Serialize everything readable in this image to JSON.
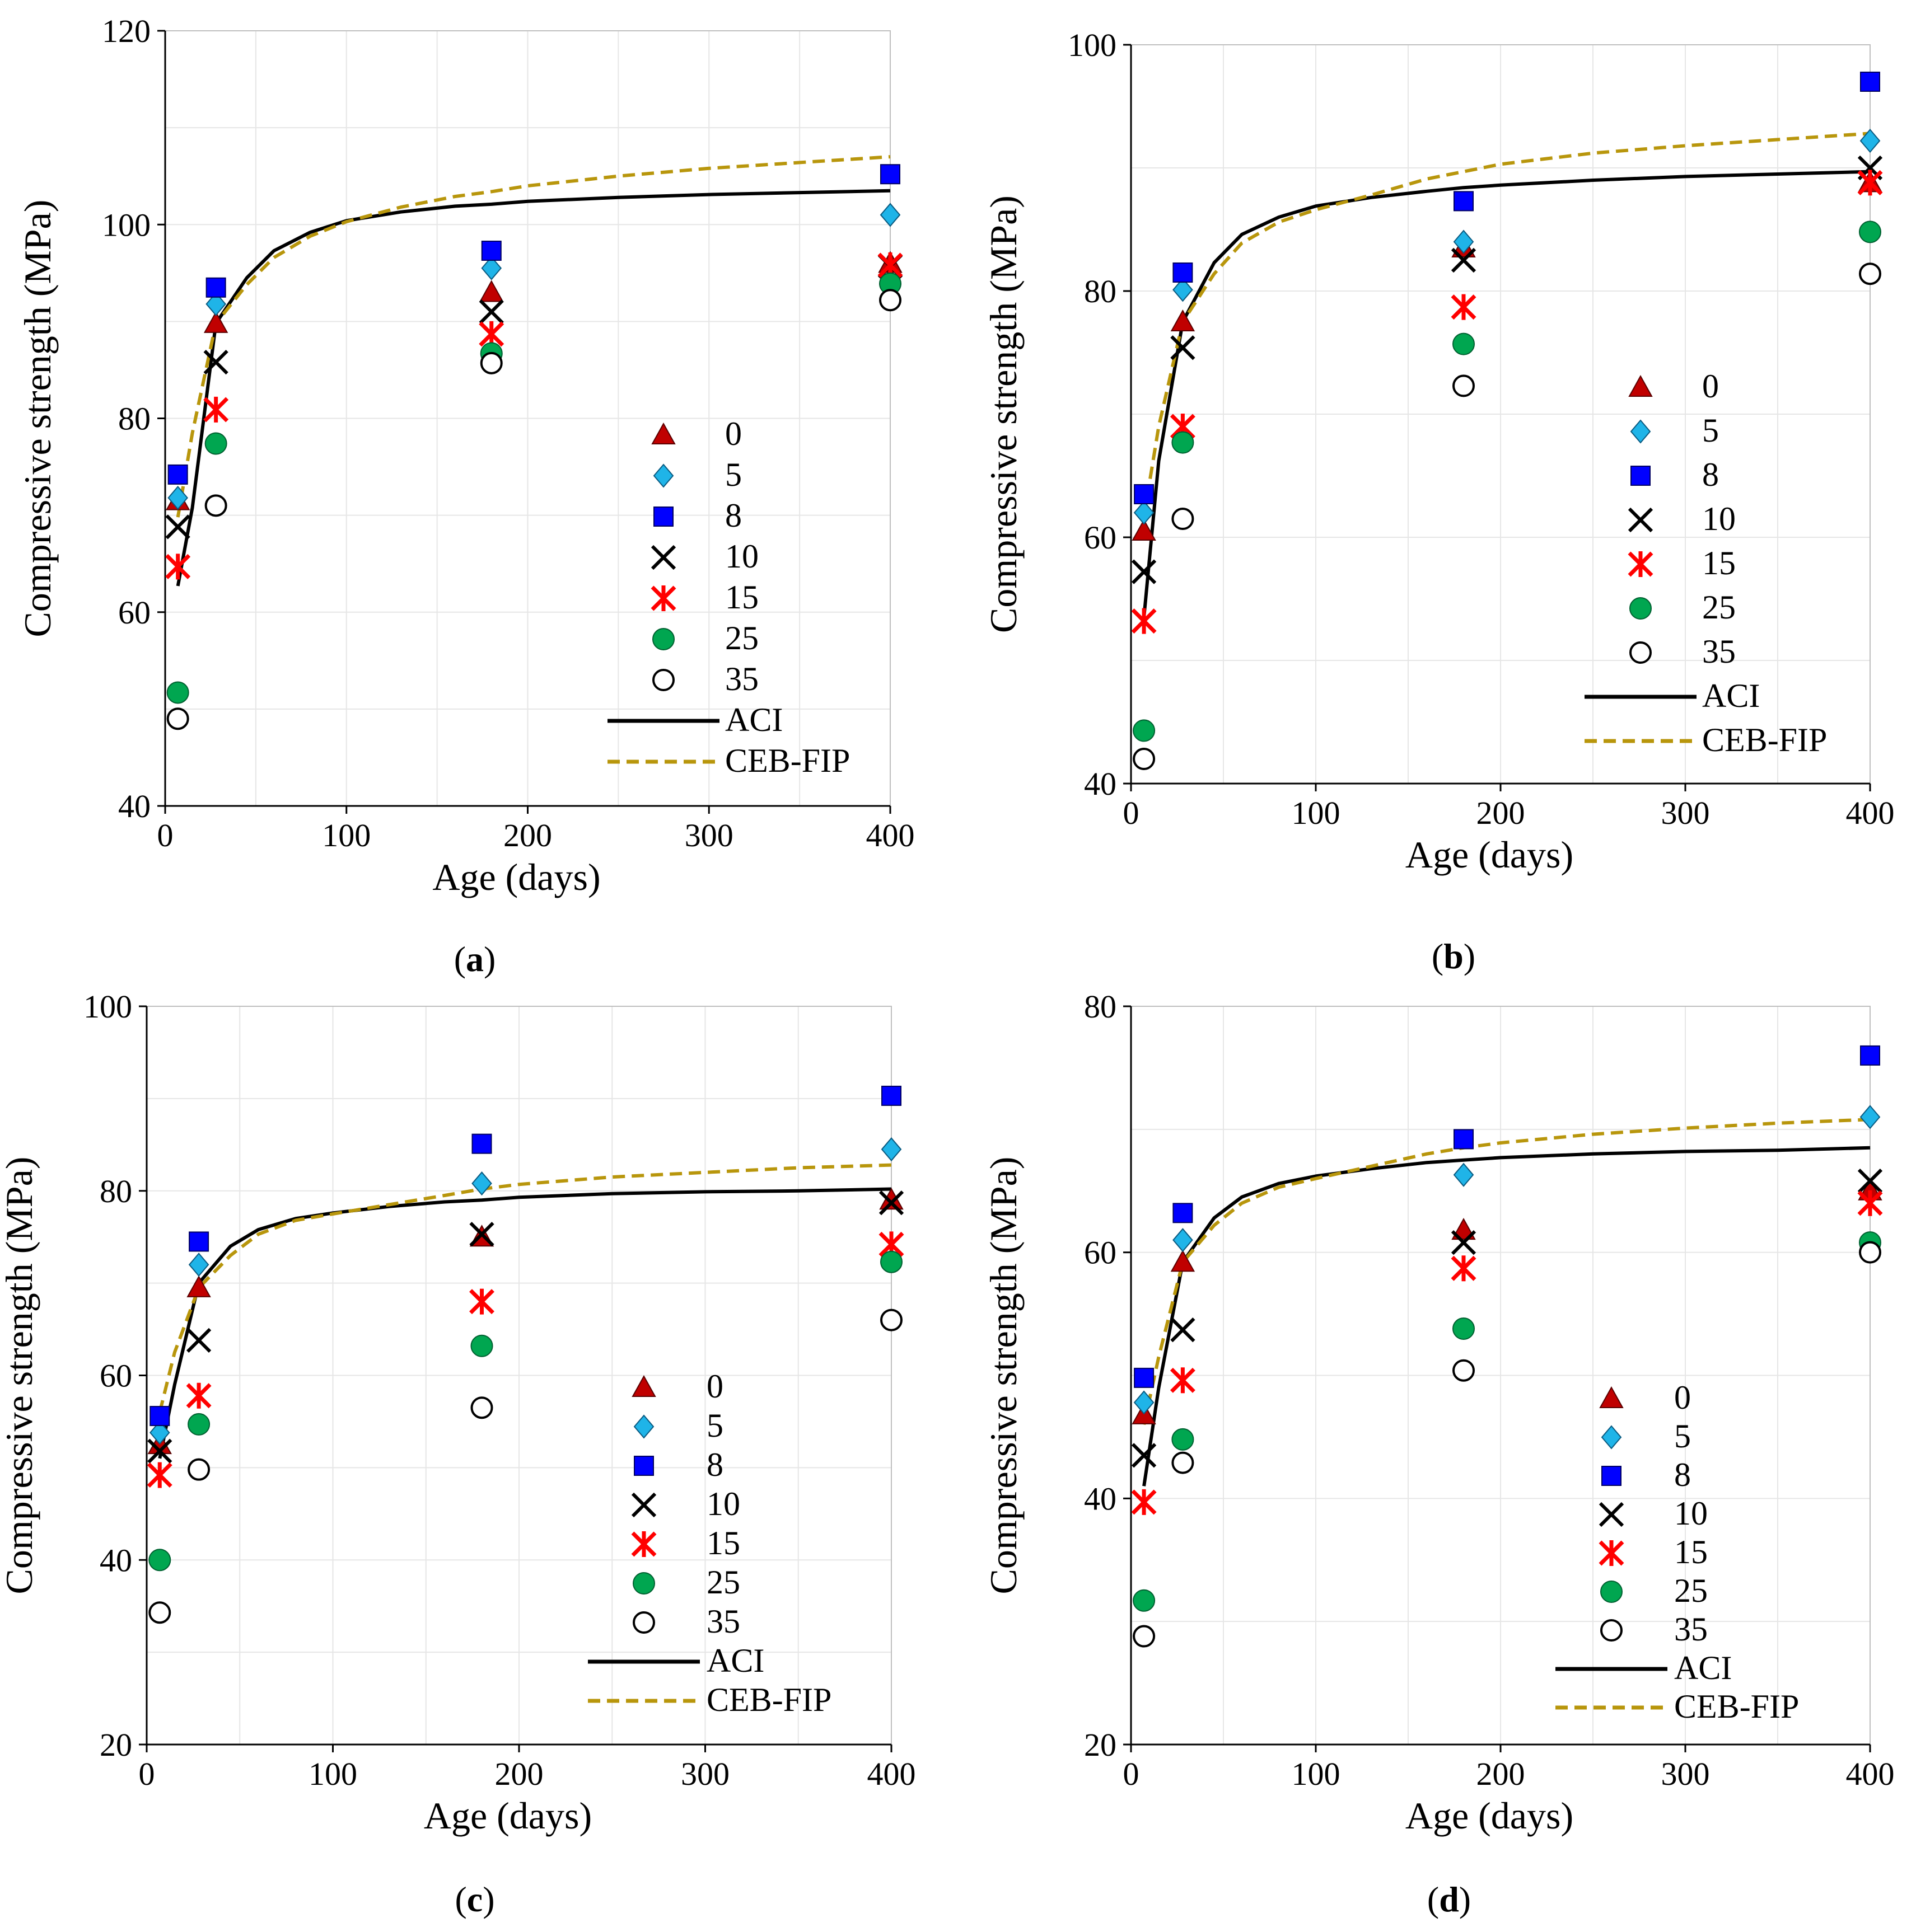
{
  "figure": {
    "series_styles": {
      "0": {
        "color": "#c00000",
        "marker": "triangle-icon"
      },
      "5": {
        "color": "#1fb4e8",
        "marker": "diamond-icon"
      },
      "8": {
        "color": "#0000ff",
        "marker": "square-icon"
      },
      "10": {
        "color": "#000000",
        "marker": "x-cross-icon"
      },
      "15": {
        "color": "#ff0000",
        "marker": "asterisk-icon"
      },
      "25": {
        "color": "#00a650",
        "marker": "filled-circle-icon"
      },
      "35": {
        "color": "#000000",
        "marker": "open-circle-icon"
      },
      "ACI": {
        "color": "#000000",
        "marker": "solid-line"
      },
      "CEB-FIP": {
        "color": "#b8960c",
        "marker": "dashed-line"
      }
    }
  },
  "chart_data": [
    {
      "type": "scatter",
      "panel_label": "a",
      "xlabel": "Age (days)",
      "ylabel": "Compressive strength (MPa)",
      "xlim": [
        0,
        400
      ],
      "ylim": [
        40,
        120
      ],
      "xticks": [
        0,
        100,
        200,
        300,
        400
      ],
      "yticks": [
        40,
        60,
        80,
        100,
        120
      ],
      "grid": true,
      "legend_position": "bottom-right",
      "x": [
        7,
        28,
        180,
        400
      ],
      "series": [
        {
          "name": "0",
          "values": [
            71.5,
            89.8,
            93.0,
            96.0
          ]
        },
        {
          "name": "5",
          "values": [
            71.8,
            91.8,
            95.5,
            101.0
          ]
        },
        {
          "name": "8",
          "values": [
            74.2,
            93.5,
            97.3,
            105.2
          ]
        },
        {
          "name": "10",
          "values": [
            68.8,
            85.8,
            91.0,
            95.7
          ]
        },
        {
          "name": "15",
          "values": [
            64.7,
            80.9,
            88.7,
            95.8
          ]
        },
        {
          "name": "25",
          "values": [
            51.7,
            77.4,
            86.7,
            93.9
          ]
        },
        {
          "name": "35",
          "values": [
            49.0,
            71.0,
            85.7,
            92.2
          ]
        }
      ],
      "lines": [
        {
          "name": "ACI",
          "x": [
            7,
            15,
            28,
            45,
            60,
            80,
            100,
            130,
            160,
            180,
            200,
            250,
            300,
            350,
            400
          ],
          "values": [
            62.7,
            70.8,
            89.8,
            94.5,
            97.3,
            99.2,
            100.4,
            101.3,
            101.9,
            102.1,
            102.4,
            102.8,
            103.1,
            103.3,
            103.5
          ]
        },
        {
          "name": "CEB-FIP",
          "x": [
            7,
            15,
            28,
            45,
            60,
            80,
            100,
            130,
            160,
            180,
            200,
            250,
            300,
            350,
            400
          ],
          "values": [
            69.8,
            78.5,
            89.8,
            93.8,
            96.6,
            98.8,
            100.3,
            101.8,
            102.9,
            103.4,
            104.0,
            105.0,
            105.8,
            106.4,
            107.0
          ]
        }
      ]
    },
    {
      "type": "scatter",
      "panel_label": "b",
      "xlabel": "Age (days)",
      "ylabel": "Compressive strength (MPa)",
      "xlim": [
        0,
        400
      ],
      "ylim": [
        40,
        100
      ],
      "xticks": [
        0,
        100,
        200,
        300,
        400
      ],
      "yticks": [
        40,
        60,
        80,
        100
      ],
      "grid": true,
      "legend_position": "right",
      "x": [
        7,
        28,
        180,
        400
      ],
      "series": [
        {
          "name": "0",
          "values": [
            60.5,
            77.5,
            83.5,
            88.8
          ]
        },
        {
          "name": "5",
          "values": [
            62.0,
            80.1,
            84.0,
            92.2
          ]
        },
        {
          "name": "8",
          "values": [
            63.5,
            81.5,
            87.3,
            97.0
          ]
        },
        {
          "name": "10",
          "values": [
            57.2,
            75.4,
            82.5,
            90.0
          ]
        },
        {
          "name": "15",
          "values": [
            53.2,
            69.0,
            78.7,
            88.8
          ]
        },
        {
          "name": "25",
          "values": [
            44.3,
            67.7,
            75.7,
            84.8
          ]
        },
        {
          "name": "35",
          "values": [
            42.0,
            61.5,
            72.3,
            81.4
          ]
        }
      ],
      "lines": [
        {
          "name": "ACI",
          "x": [
            7,
            15,
            28,
            45,
            60,
            80,
            100,
            130,
            160,
            180,
            200,
            250,
            300,
            350,
            400
          ],
          "values": [
            53.5,
            66.2,
            77.5,
            82.3,
            84.6,
            86.0,
            86.9,
            87.6,
            88.1,
            88.4,
            88.6,
            89.0,
            89.3,
            89.5,
            89.7
          ]
        },
        {
          "name": "CEB-FIP",
          "x": [
            7,
            15,
            28,
            45,
            60,
            80,
            100,
            130,
            160,
            180,
            200,
            250,
            300,
            350,
            400
          ],
          "values": [
            61.7,
            69.0,
            77.5,
            81.4,
            83.9,
            85.6,
            86.6,
            87.8,
            89.1,
            89.7,
            90.3,
            91.2,
            91.8,
            92.3,
            92.8
          ]
        }
      ]
    },
    {
      "type": "scatter",
      "panel_label": "c",
      "xlabel": "Age (days)",
      "ylabel": "Compressive strength (MPa)",
      "xlim": [
        0,
        400
      ],
      "ylim": [
        20,
        100
      ],
      "xticks": [
        0,
        100,
        200,
        300,
        400
      ],
      "yticks": [
        20,
        40,
        60,
        80,
        100
      ],
      "grid": true,
      "legend_position": "bottom-right",
      "x": [
        7,
        28,
        180,
        400
      ],
      "series": [
        {
          "name": "0",
          "values": [
            52.5,
            69.5,
            75.0,
            79.0
          ]
        },
        {
          "name": "5",
          "values": [
            53.8,
            72.0,
            80.8,
            84.5
          ]
        },
        {
          "name": "8",
          "values": [
            55.6,
            74.5,
            85.1,
            90.3
          ]
        },
        {
          "name": "10",
          "values": [
            51.8,
            63.8,
            75.3,
            78.7
          ]
        },
        {
          "name": "15",
          "values": [
            49.2,
            57.8,
            68.0,
            74.2
          ]
        },
        {
          "name": "25",
          "values": [
            40.0,
            54.7,
            63.2,
            72.3
          ]
        },
        {
          "name": "35",
          "values": [
            34.3,
            49.8,
            56.5,
            66.0
          ]
        }
      ],
      "lines": [
        {
          "name": "ACI",
          "x": [
            7,
            15,
            28,
            45,
            60,
            80,
            100,
            130,
            160,
            180,
            200,
            250,
            300,
            350,
            400
          ],
          "values": [
            51.0,
            59.0,
            70.0,
            74.0,
            75.8,
            77.0,
            77.6,
            78.3,
            78.8,
            79.0,
            79.3,
            79.7,
            79.9,
            80.0,
            80.2
          ]
        },
        {
          "name": "CEB-FIP",
          "x": [
            7,
            15,
            28,
            45,
            60,
            80,
            100,
            130,
            160,
            180,
            200,
            250,
            300,
            350,
            400
          ],
          "values": [
            56.0,
            62.5,
            69.5,
            73.0,
            75.3,
            76.8,
            77.5,
            78.5,
            79.5,
            80.2,
            80.7,
            81.5,
            82.0,
            82.5,
            82.8
          ]
        }
      ]
    },
    {
      "type": "scatter",
      "panel_label": "d",
      "xlabel": "Age (days)",
      "ylabel": "Compressive strength (MPa)",
      "xlim": [
        0,
        400
      ],
      "ylim": [
        20,
        80
      ],
      "xticks": [
        0,
        100,
        200,
        300,
        400
      ],
      "yticks": [
        20,
        40,
        60,
        80
      ],
      "grid": true,
      "legend_position": "bottom-right",
      "x": [
        7,
        28,
        180,
        400
      ],
      "series": [
        {
          "name": "0",
          "values": [
            46.8,
            59.2,
            61.8,
            65.0
          ]
        },
        {
          "name": "5",
          "values": [
            47.8,
            61.0,
            66.3,
            71.0
          ]
        },
        {
          "name": "8",
          "values": [
            49.8,
            63.2,
            69.2,
            76.0
          ]
        },
        {
          "name": "10",
          "values": [
            43.5,
            53.7,
            60.8,
            65.8
          ]
        },
        {
          "name": "15",
          "values": [
            39.7,
            49.6,
            58.7,
            64.0
          ]
        },
        {
          "name": "25",
          "values": [
            31.7,
            44.8,
            53.8,
            60.8
          ]
        },
        {
          "name": "35",
          "values": [
            28.8,
            42.9,
            50.4,
            60.0
          ]
        }
      ],
      "lines": [
        {
          "name": "ACI",
          "x": [
            7,
            15,
            28,
            45,
            60,
            80,
            100,
            130,
            160,
            180,
            200,
            250,
            300,
            350,
            400
          ],
          "values": [
            41.0,
            49.0,
            59.2,
            62.8,
            64.5,
            65.6,
            66.2,
            66.8,
            67.3,
            67.5,
            67.7,
            68.0,
            68.2,
            68.3,
            68.5
          ]
        },
        {
          "name": "CEB-FIP",
          "x": [
            7,
            15,
            28,
            45,
            60,
            80,
            100,
            130,
            160,
            180,
            200,
            250,
            300,
            350,
            400
          ],
          "values": [
            46.0,
            51.5,
            59.2,
            62.2,
            64.0,
            65.3,
            66.0,
            67.0,
            68.0,
            68.5,
            68.9,
            69.6,
            70.1,
            70.5,
            70.8
          ]
        }
      ]
    }
  ]
}
